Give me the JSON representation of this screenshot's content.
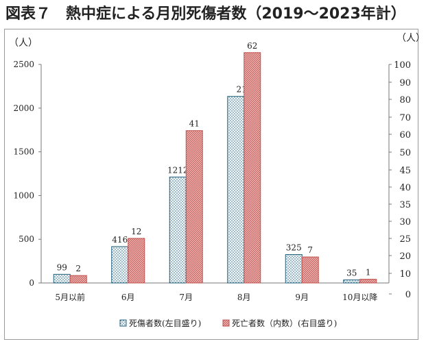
{
  "figure": {
    "title": "図表７　熱中症による月別死傷者数（2019〜2023年計）"
  },
  "chart_data": {
    "type": "bar",
    "categories": [
      "5月以前",
      "6月",
      "7月",
      "8月",
      "9月",
      "10月以降"
    ],
    "y_unit_left": "（人）",
    "y_unit_right": "（人）",
    "y_left_ticks": [
      0,
      500,
      1000,
      1500,
      2000,
      2500
    ],
    "y_right_ticks": [
      0,
      10,
      20,
      25,
      30,
      35,
      40,
      45,
      50,
      60,
      70,
      80,
      90,
      100
    ],
    "ylim_left": [
      0,
      2500
    ],
    "series": [
      {
        "name": "死傷者数(左目盛り)",
        "axis": "left",
        "color": "#1f5f7a",
        "fill": "#eef4f6",
        "values": [
          99,
          416,
          1212,
          2134,
          325,
          35
        ]
      },
      {
        "name": "死亡者数（内数）(右目盛り)",
        "axis": "right",
        "color": "#c0504d",
        "fill": "#e7a09c",
        "values": [
          2,
          12,
          41,
          62,
          7,
          1
        ]
      }
    ],
    "grid": false,
    "legend": "bottom"
  }
}
